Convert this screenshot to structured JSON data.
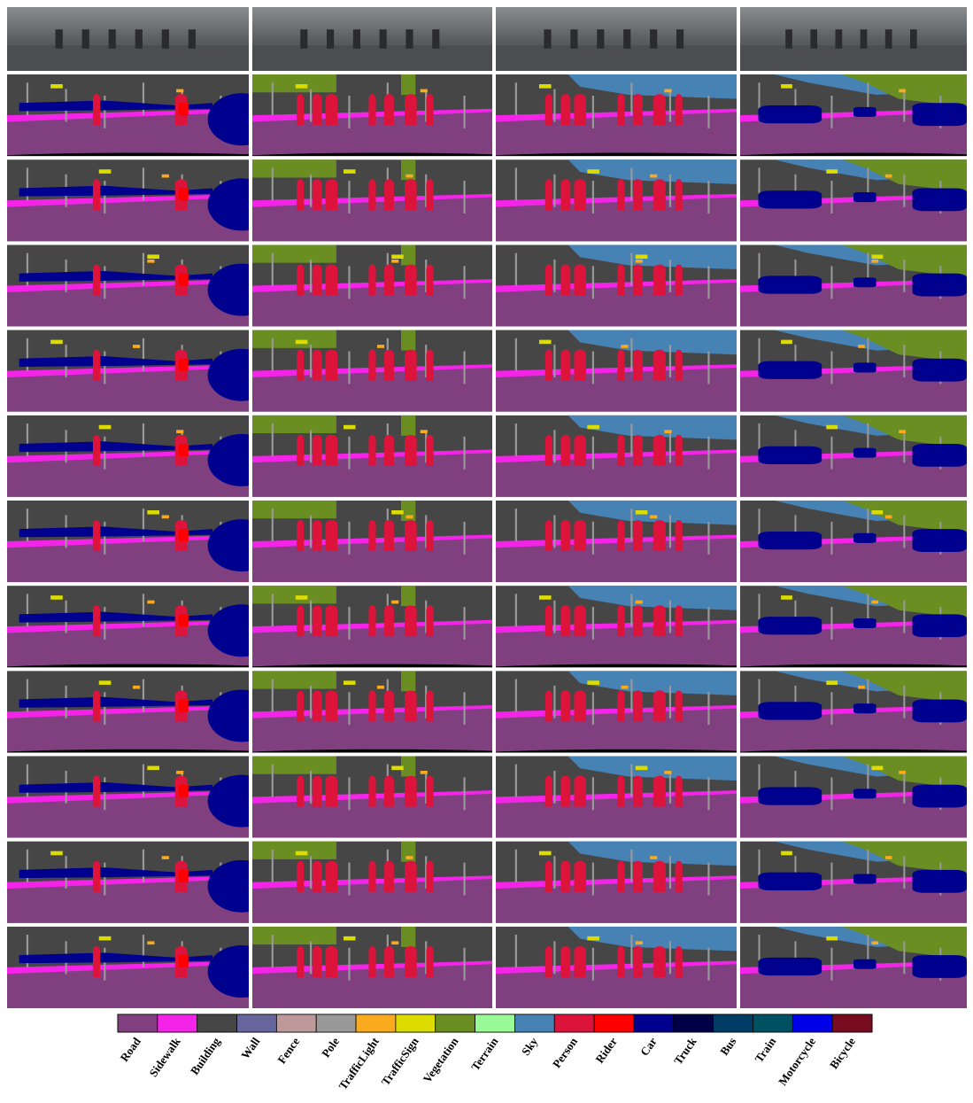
{
  "legend": [
    {
      "label": "Road",
      "color": "#804080"
    },
    {
      "label": "Sidewalk",
      "color": "#f423e8"
    },
    {
      "label": "Building",
      "color": "#464646"
    },
    {
      "label": "Wall",
      "color": "#66669c"
    },
    {
      "label": "Fence",
      "color": "#be9999"
    },
    {
      "label": "Pole",
      "color": "#999999"
    },
    {
      "label": "TrafficLight",
      "color": "#faaa1e"
    },
    {
      "label": "TrafficSign",
      "color": "#dcdc00"
    },
    {
      "label": "Vegetation",
      "color": "#6b8e23"
    },
    {
      "label": "Terrain",
      "color": "#98fb98"
    },
    {
      "label": "Sky",
      "color": "#4682b4"
    },
    {
      "label": "Person",
      "color": "#dc143c"
    },
    {
      "label": "Rider",
      "color": "#ff0000"
    },
    {
      "label": "Car",
      "color": "#00008e"
    },
    {
      "label": "Truck",
      "color": "#000046"
    },
    {
      "label": "Bus",
      "color": "#003c64"
    },
    {
      "label": "Train",
      "color": "#005064"
    },
    {
      "label": "Motorcycle",
      "color": "#0000e6"
    },
    {
      "label": "Bicycle",
      "color": "#770b20"
    }
  ]
}
